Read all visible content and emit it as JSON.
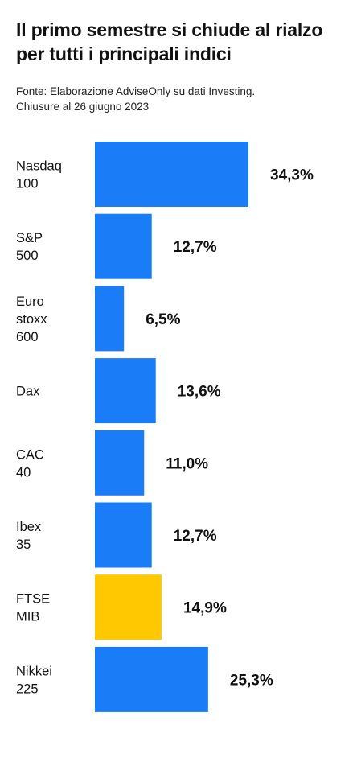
{
  "title_lines": [
    "Il primo semestre si chiude al rialzo",
    "per tutti i principali indici"
  ],
  "source_lines": [
    "Fonte: Elaborazione AdviseOnly su dati Investing.",
    "Chiusure al 26 giugno 2023"
  ],
  "colors": {
    "default_bar": "#1a7cf7",
    "highlight_bar": "#ffc800"
  },
  "chart_data": {
    "type": "bar",
    "orientation": "horizontal",
    "title": "Il primo semestre si chiude al rialzo per tutti i principali indici",
    "xlabel": "",
    "ylabel": "",
    "xlim": [
      0,
      34.3
    ],
    "grid": false,
    "legend": "none",
    "categories": [
      [
        "Nasdaq",
        "100"
      ],
      [
        "S&P",
        "500"
      ],
      [
        "Euro",
        "stoxx",
        "600"
      ],
      [
        "Dax"
      ],
      [
        "CAC",
        "40"
      ],
      [
        "Ibex",
        "35"
      ],
      [
        "FTSE",
        "MIB"
      ],
      [
        "Nikkei",
        "225"
      ]
    ],
    "values": [
      34.3,
      12.7,
      6.5,
      13.6,
      11.0,
      12.7,
      14.9,
      25.3
    ],
    "value_labels": [
      "34,3%",
      "12,7%",
      "6,5%",
      "13,6%",
      "11,0%",
      "12,7%",
      "14,9%",
      "25,3%"
    ],
    "highlighted": [
      false,
      false,
      false,
      false,
      false,
      false,
      true,
      false
    ]
  }
}
